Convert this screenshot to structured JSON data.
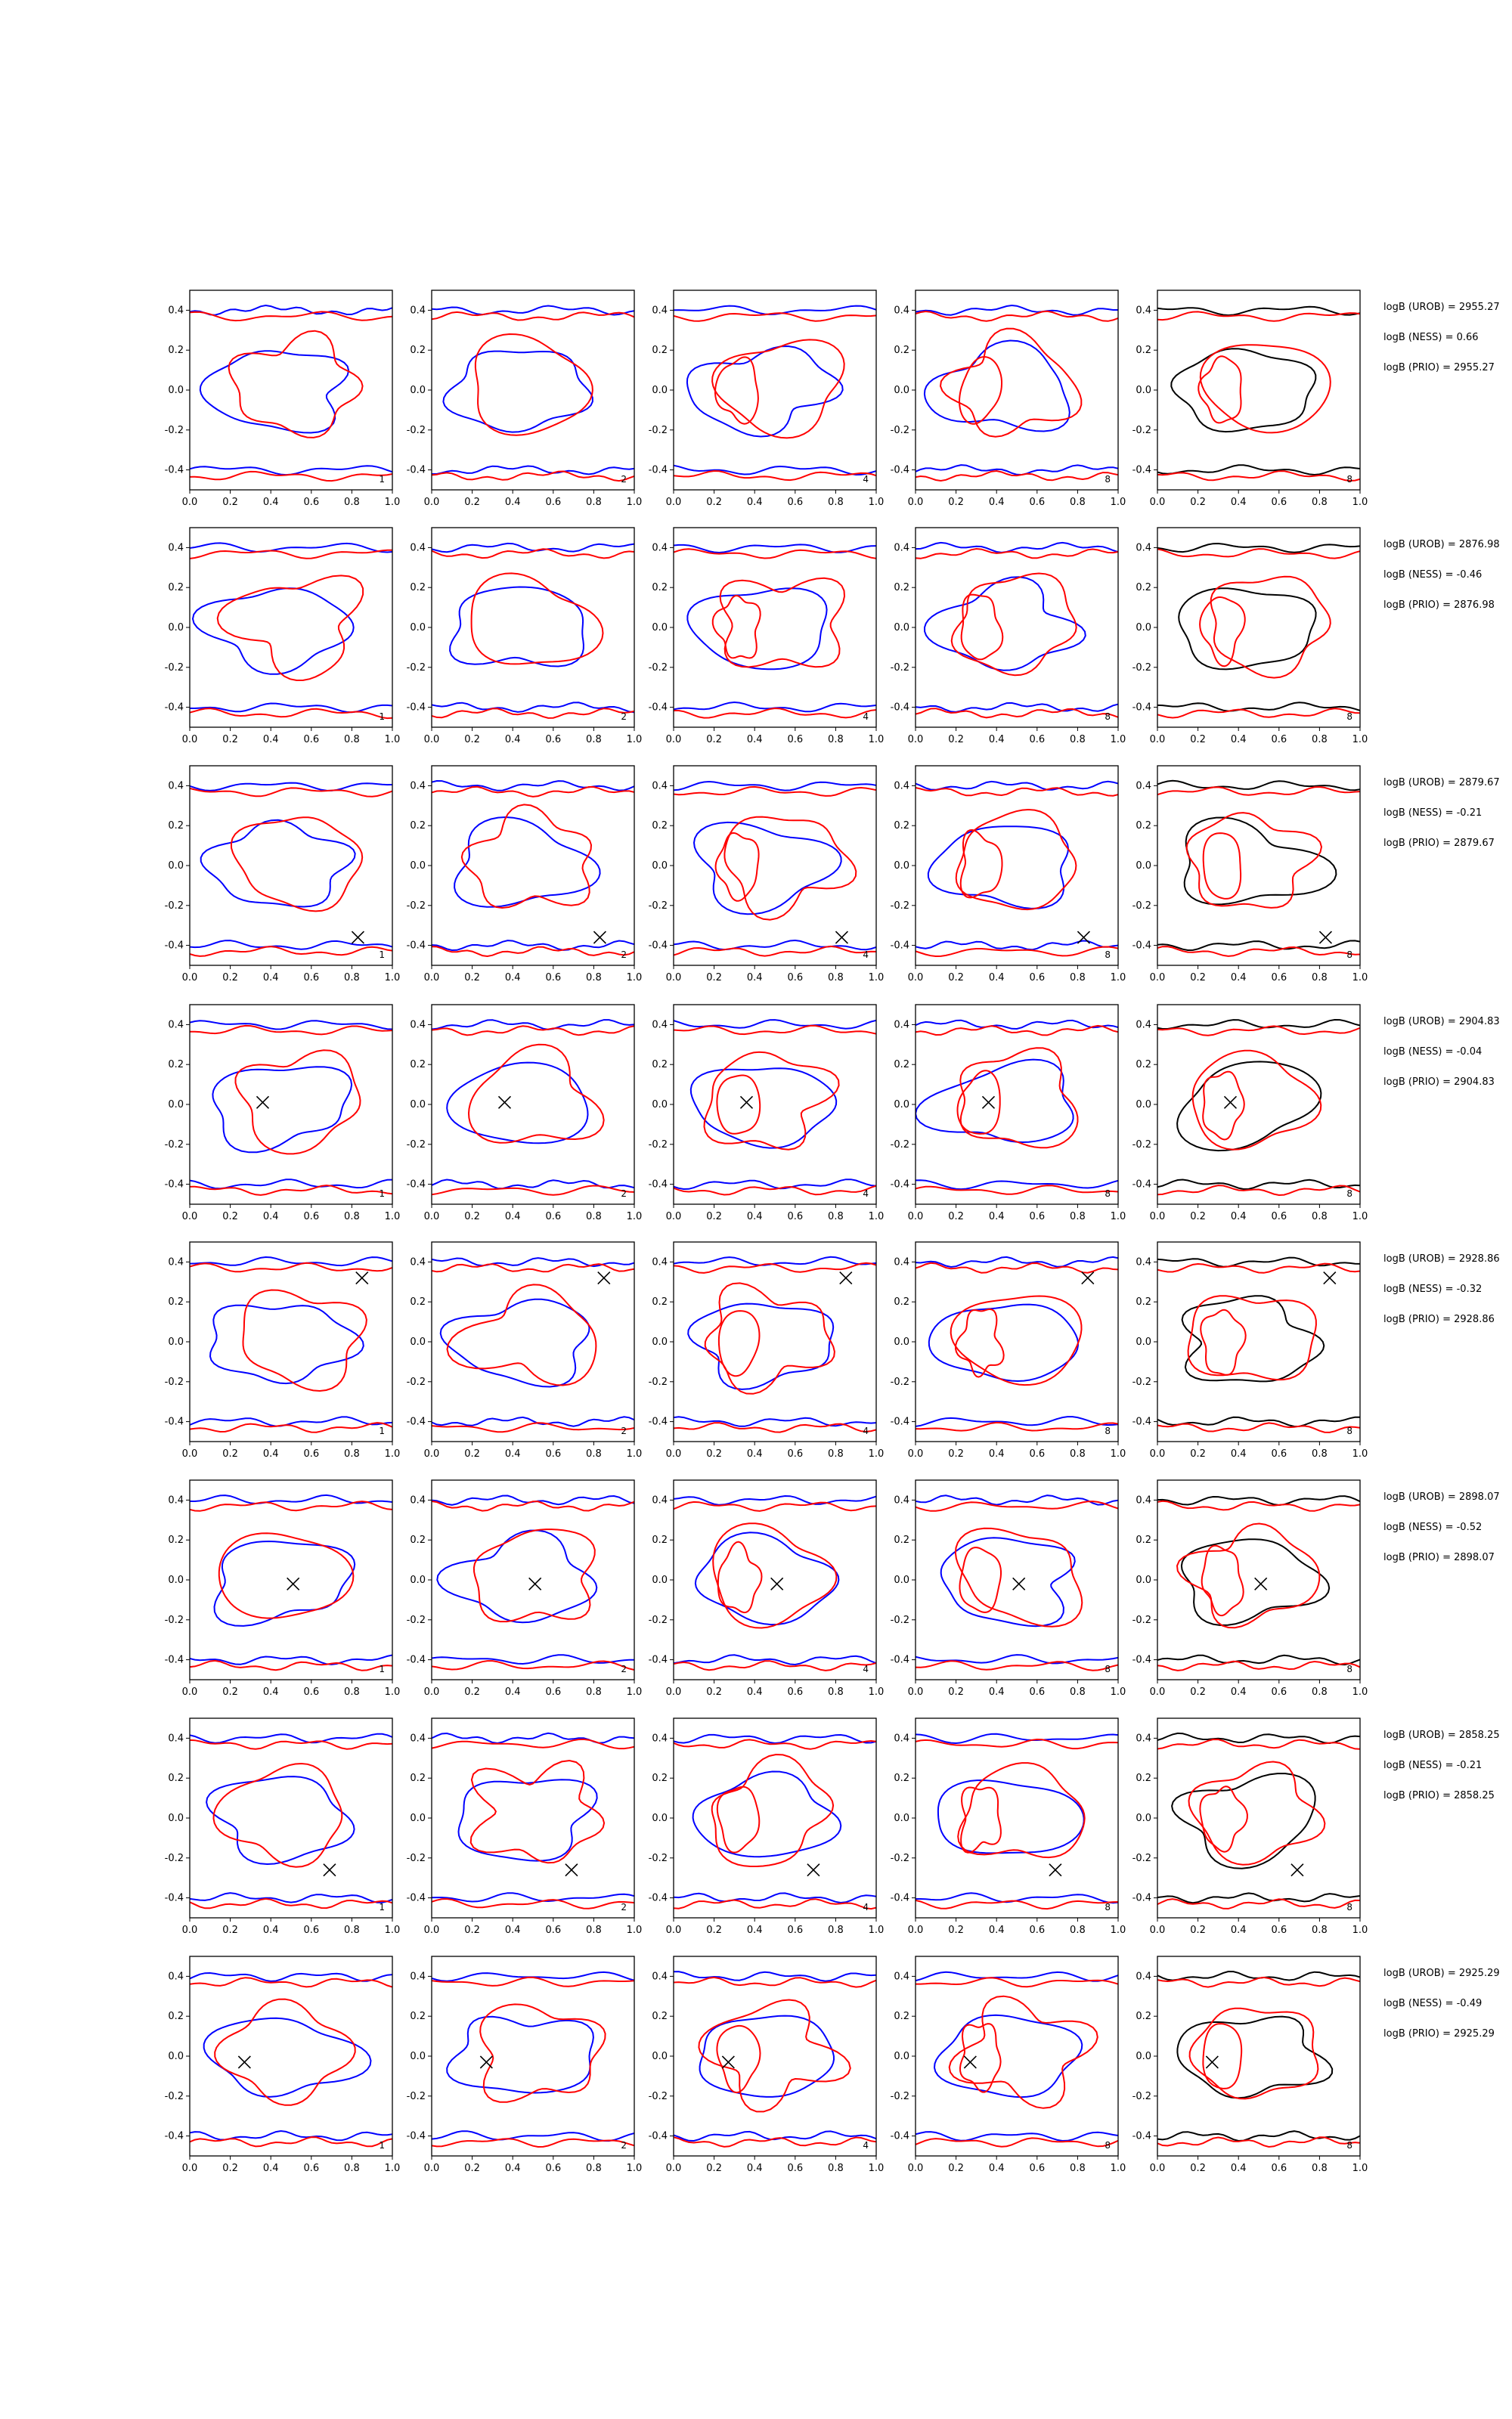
{
  "chart_data": {
    "type": "contour-grid",
    "rows": 8,
    "cols": 5,
    "xlim": [
      0.0,
      1.0
    ],
    "ylim": [
      -0.5,
      0.5
    ],
    "xticks": [
      "0.0",
      "0.2",
      "0.4",
      "0.6",
      "0.8",
      "1.0"
    ],
    "yticks": [
      "0.4",
      "0.2",
      "0.0",
      "-0.2",
      "-0.4"
    ],
    "column_labels": [
      "1",
      "2",
      "4",
      "8",
      "8"
    ],
    "colors": {
      "model_a": "#0000ff",
      "model_b": "#ff0000",
      "combined": "#000000",
      "marker": "#000000"
    },
    "rows_data": [
      {
        "marker": null,
        "stats": [
          "logB (UROB) = 2955.27",
          "logB (NESS) = 0.66",
          "logB (PRIO) = 2955.27"
        ]
      },
      {
        "marker": null,
        "stats": [
          "logB (UROB) = 2876.98",
          "logB (NESS) = -0.46",
          "logB (PRIO) = 2876.98"
        ]
      },
      {
        "marker": [
          0.83,
          -0.36
        ],
        "stats": [
          "logB (UROB) = 2879.67",
          "logB (NESS) = -0.21",
          "logB (PRIO) = 2879.67"
        ]
      },
      {
        "marker": [
          0.36,
          0.01
        ],
        "stats": [
          "logB (UROB) = 2904.83",
          "logB (NESS) = -0.04",
          "logB (PRIO) = 2904.83"
        ]
      },
      {
        "marker": [
          0.85,
          0.32
        ],
        "stats": [
          "logB (UROB) = 2928.86",
          "logB (NESS) = -0.32",
          "logB (PRIO) = 2928.86"
        ]
      },
      {
        "marker": [
          0.51,
          -0.02
        ],
        "stats": [
          "logB (UROB) = 2898.07",
          "logB (NESS) = -0.52",
          "logB (PRIO) = 2898.07"
        ]
      },
      {
        "marker": [
          0.69,
          -0.26
        ],
        "stats": [
          "logB (UROB) = 2858.25",
          "logB (NESS) = -0.21",
          "logB (PRIO) = 2858.25"
        ]
      },
      {
        "marker": [
          0.27,
          -0.03
        ],
        "stats": [
          "logB (UROB) = 2925.29",
          "logB (NESS) = -0.49",
          "logB (PRIO) = 2925.29"
        ]
      }
    ]
  }
}
